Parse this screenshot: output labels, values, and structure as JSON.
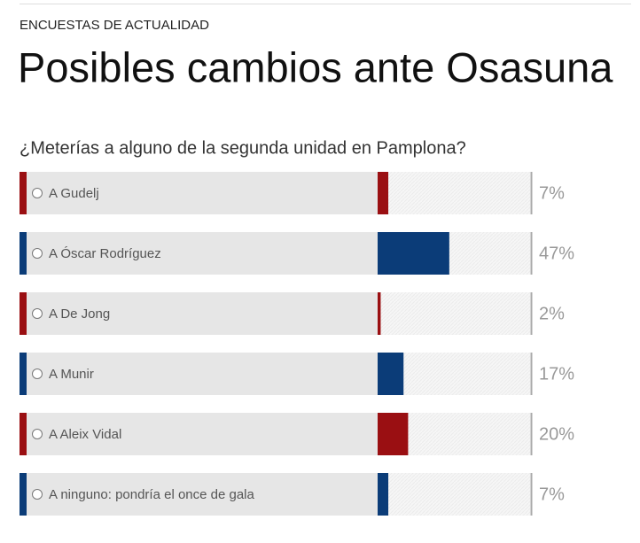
{
  "chart_data": {
    "type": "bar",
    "kicker": "ENCUESTAS DE ACTUALIDAD",
    "title": "Posibles cambios ante Osasuna",
    "question": "¿Meterías a alguno de la segunda unidad en Pamplona?",
    "categories": [
      "A Gudelj",
      "A Óscar Rodríguez",
      "A De Jong",
      "A Munir",
      "A Aleix Vidal",
      "A ninguno: pondría el once de gala"
    ],
    "values": [
      7,
      47,
      2,
      17,
      20,
      7
    ],
    "value_labels": [
      "7%",
      "47%",
      "2%",
      "17%",
      "20%",
      "7%"
    ],
    "colors": [
      "#9a0f12",
      "#0b3c78",
      "#9a0f12",
      "#0b3c78",
      "#9a0f12",
      "#0b3c78"
    ],
    "xlim": [
      0,
      100
    ]
  }
}
